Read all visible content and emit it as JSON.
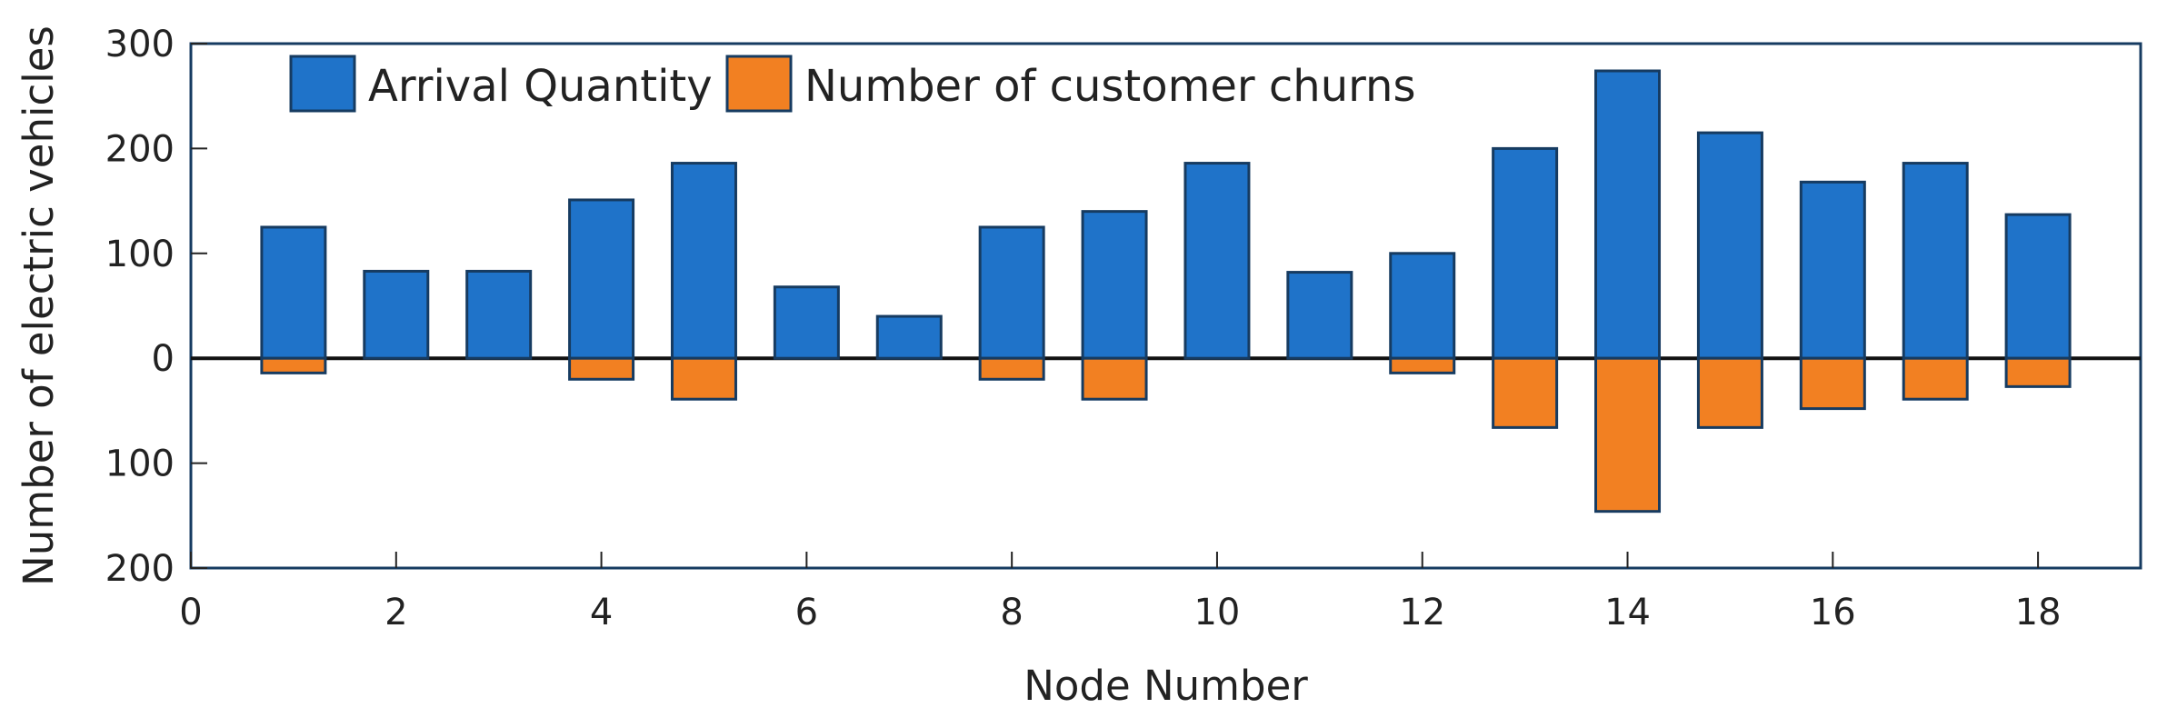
{
  "chart_data": {
    "type": "bar",
    "xlabel": "Node Number",
    "ylabel": "Number of electric vehicles",
    "xlim": [
      0,
      19
    ],
    "ylim": [
      -200,
      300
    ],
    "xticks": [
      0,
      2,
      4,
      6,
      8,
      10,
      12,
      14,
      16,
      18
    ],
    "yticks": [
      {
        "value": 300,
        "label": "300"
      },
      {
        "value": 200,
        "label": "200"
      },
      {
        "value": 100,
        "label": "100"
      },
      {
        "value": 0,
        "label": "0"
      },
      {
        "value": -100,
        "label": "100"
      },
      {
        "value": -200,
        "label": "200"
      }
    ],
    "x": [
      1,
      2,
      3,
      4,
      5,
      6,
      7,
      8,
      9,
      10,
      11,
      12,
      13,
      14,
      15,
      16,
      17,
      18
    ],
    "series": [
      {
        "name": "Arrival Quantity",
        "color": "#1f73c9",
        "values": [
          125,
          83,
          83,
          151,
          186,
          68,
          40,
          125,
          140,
          186,
          82,
          100,
          200,
          274,
          215,
          168,
          186,
          137
        ]
      },
      {
        "name": "Number of customer churns",
        "color": "#f28022",
        "values": [
          -14,
          0,
          0,
          -20,
          -39,
          0,
          0,
          -20,
          -39,
          0,
          0,
          -14,
          -66,
          -146,
          -66,
          -48,
          -39,
          -27
        ]
      }
    ],
    "grid": false,
    "legend": "top-left"
  }
}
